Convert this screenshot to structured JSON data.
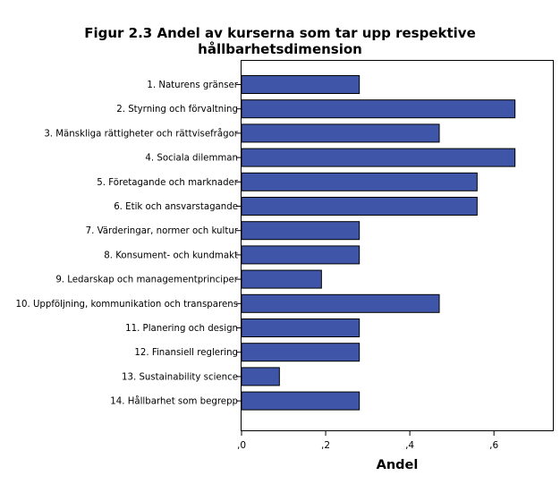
{
  "chart_data": {
    "type": "bar",
    "orientation": "horizontal",
    "title": "Figur 2.3 Andel av kurserna som tar upp respektive hållbarhetsdimension",
    "xlabel": "Andel",
    "ylabel": "",
    "xlim": [
      0,
      0.74
    ],
    "xticks": [
      0,
      0.2,
      0.4,
      0.6
    ],
    "xtick_labels": [
      ",0",
      ",2",
      ",4",
      ",6"
    ],
    "grid": false,
    "bar_color": "#3f55a8",
    "categories": [
      "1. Naturens gränser",
      "2. Styrning och förvaltning",
      "3. Mänskliga rättigheter och rättvisefrågor",
      "4. Sociala dilemman",
      "5. Företagande och marknader",
      "6. Etik och ansvarstagande",
      "7. Värderingar, normer och kultur",
      "8. Konsument- och kundmakt",
      "9. Ledarskap och managementprinciper",
      "10. Uppföljning, kommunikation och transparens",
      "11. Planering och design",
      "12. Finansiell reglering",
      "13. Sustainability science",
      "14. Hållbarhet som begrepp"
    ],
    "values": [
      0.28,
      0.65,
      0.47,
      0.65,
      0.56,
      0.56,
      0.28,
      0.28,
      0.19,
      0.47,
      0.28,
      0.28,
      0.09,
      0.28
    ]
  }
}
